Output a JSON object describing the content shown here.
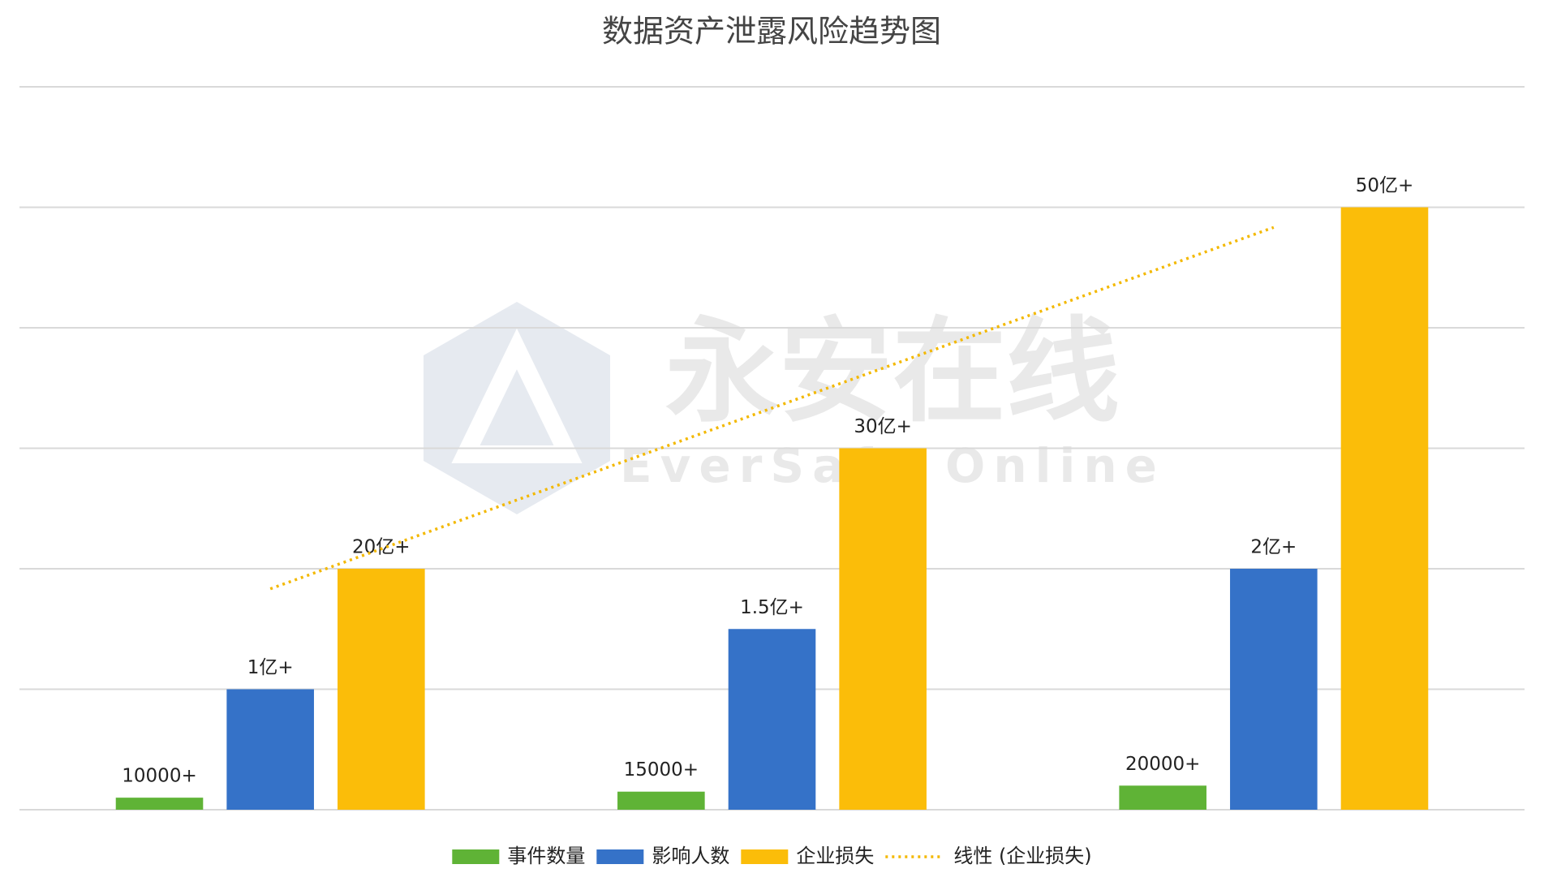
{
  "chart_data": {
    "type": "bar",
    "title": "数据资产泄露风险趋势图",
    "categories": [
      null,
      null,
      null
    ],
    "series": [
      {
        "name": "事件数量",
        "color": "#5fb336",
        "values": [
          0.1,
          0.15,
          0.2
        ],
        "value_labels": [
          "10000+",
          "15000+",
          "20000+"
        ]
      },
      {
        "name": "影响人数",
        "color": "#3572c8",
        "values": [
          1,
          1.5,
          2
        ],
        "value_labels": [
          "1亿+",
          "1.5亿+",
          "2亿+"
        ]
      },
      {
        "name": "企业损失",
        "color": "#fbbd09",
        "values": [
          2,
          3,
          5
        ],
        "value_labels": [
          "20亿+",
          "30亿+",
          "50亿+"
        ]
      }
    ],
    "trendline": {
      "name": "线性 (企业损失)",
      "series": 2,
      "color": "#f3b800"
    },
    "ylim": [
      0,
      6
    ],
    "yticks": [
      0,
      1,
      2,
      3,
      4,
      5,
      6
    ],
    "grid": true,
    "watermark": {
      "title": "永安在线",
      "subtitle": "EverSafe Online"
    }
  }
}
